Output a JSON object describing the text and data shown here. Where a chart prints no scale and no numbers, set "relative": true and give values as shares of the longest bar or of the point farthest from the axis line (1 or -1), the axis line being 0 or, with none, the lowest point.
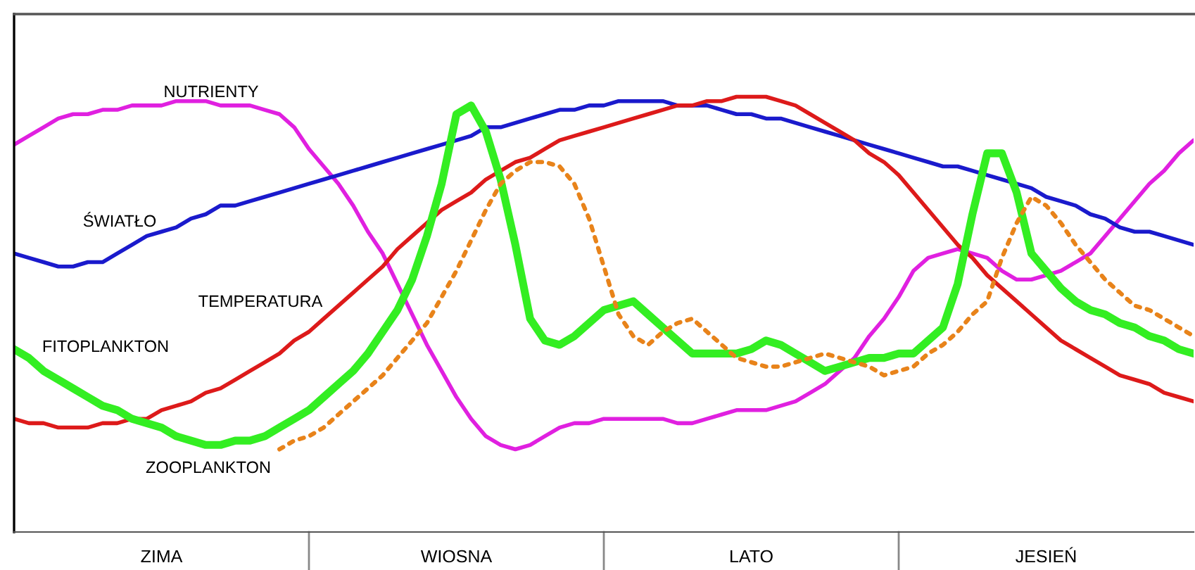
{
  "chart_data": {
    "type": "line",
    "relative": true,
    "tick_labels": "x",
    "grid": false,
    "legend": false,
    "marker": "none",
    "categories": [
      null,
      null,
      null,
      null,
      null,
      null,
      null,
      null,
      null,
      null,
      "ZIMA",
      null,
      null,
      null,
      null,
      null,
      null,
      null,
      null,
      null,
      null,
      null,
      null,
      null,
      null,
      null,
      null,
      null,
      null,
      null,
      "WIOSNA",
      null,
      null,
      null,
      null,
      null,
      null,
      null,
      null,
      null,
      null,
      null,
      null,
      null,
      null,
      null,
      null,
      null,
      null,
      null,
      "LATO",
      null,
      null,
      null,
      null,
      null,
      null,
      null,
      null,
      null,
      null,
      null,
      null,
      null,
      null,
      null,
      null,
      null,
      null,
      null,
      "JESIEŃ",
      null,
      null,
      null,
      null,
      null,
      null,
      null,
      null,
      null,
      null
    ],
    "series": [
      {
        "name": "NUTRIENTY",
        "color": "#e020e0",
        "line_style": "solid",
        "values": [
          0.89,
          0.91,
          0.93,
          0.95,
          0.96,
          0.96,
          0.97,
          0.97,
          0.98,
          0.98,
          0.98,
          0.99,
          0.99,
          0.99,
          0.98,
          0.98,
          0.98,
          0.97,
          0.96,
          0.93,
          0.88,
          0.84,
          0.8,
          0.75,
          0.69,
          0.64,
          0.57,
          0.5,
          0.43,
          0.37,
          0.31,
          0.26,
          0.22,
          0.2,
          0.19,
          0.2,
          0.22,
          0.24,
          0.25,
          0.25,
          0.26,
          0.26,
          0.26,
          0.26,
          0.26,
          0.25,
          0.25,
          0.26,
          0.27,
          0.28,
          0.28,
          0.28,
          0.29,
          0.3,
          0.32,
          0.34,
          0.37,
          0.4,
          0.45,
          0.49,
          0.54,
          0.6,
          0.63,
          0.64,
          0.65,
          0.64,
          0.63,
          0.6,
          0.58,
          0.58,
          0.59,
          0.6,
          0.62,
          0.64,
          0.68,
          0.72,
          0.76,
          0.8,
          0.83,
          0.87,
          0.9
        ]
      },
      {
        "name": "ŚWIATŁO",
        "color": "#1a1acc",
        "line_style": "solid",
        "values": [
          0.64,
          0.63,
          0.62,
          0.61,
          0.61,
          0.62,
          0.62,
          0.64,
          0.66,
          0.68,
          0.69,
          0.7,
          0.72,
          0.73,
          0.75,
          0.75,
          0.76,
          0.77,
          0.78,
          0.79,
          0.8,
          0.81,
          0.82,
          0.83,
          0.84,
          0.85,
          0.86,
          0.87,
          0.88,
          0.89,
          0.9,
          0.91,
          0.93,
          0.93,
          0.94,
          0.95,
          0.96,
          0.97,
          0.97,
          0.98,
          0.98,
          0.99,
          0.99,
          0.99,
          0.99,
          0.98,
          0.98,
          0.98,
          0.97,
          0.96,
          0.96,
          0.95,
          0.95,
          0.94,
          0.93,
          0.92,
          0.91,
          0.9,
          0.89,
          0.88,
          0.87,
          0.86,
          0.85,
          0.84,
          0.84,
          0.83,
          0.82,
          0.81,
          0.8,
          0.79,
          0.77,
          0.76,
          0.75,
          0.73,
          0.72,
          0.7,
          0.69,
          0.69,
          0.68,
          0.67,
          0.66
        ]
      },
      {
        "name": "TEMPERATURA",
        "color": "#dd1a1a",
        "line_style": "solid",
        "values": [
          0.26,
          0.25,
          0.25,
          0.24,
          0.24,
          0.24,
          0.25,
          0.25,
          0.26,
          0.26,
          0.28,
          0.29,
          0.3,
          0.32,
          0.33,
          0.35,
          0.37,
          0.39,
          0.41,
          0.44,
          0.46,
          0.49,
          0.52,
          0.55,
          0.58,
          0.61,
          0.65,
          0.68,
          0.71,
          0.74,
          0.76,
          0.78,
          0.81,
          0.83,
          0.85,
          0.86,
          0.88,
          0.9,
          0.91,
          0.92,
          0.93,
          0.94,
          0.95,
          0.96,
          0.97,
          0.98,
          0.98,
          0.99,
          0.99,
          1.0,
          1.0,
          1.0,
          0.99,
          0.98,
          0.96,
          0.94,
          0.92,
          0.9,
          0.87,
          0.85,
          0.82,
          0.78,
          0.74,
          0.7,
          0.66,
          0.63,
          0.59,
          0.56,
          0.53,
          0.5,
          0.47,
          0.44,
          0.42,
          0.4,
          0.38,
          0.36,
          0.35,
          0.34,
          0.32,
          0.31,
          0.3
        ]
      },
      {
        "name": "FITOPLANKTON",
        "color": "#33ee22",
        "line_style": "solid",
        "values": [
          0.42,
          0.4,
          0.37,
          0.35,
          0.33,
          0.31,
          0.29,
          0.28,
          0.26,
          0.25,
          0.24,
          0.22,
          0.21,
          0.2,
          0.2,
          0.21,
          0.21,
          0.22,
          0.24,
          0.26,
          0.28,
          0.31,
          0.34,
          0.37,
          0.41,
          0.46,
          0.51,
          0.58,
          0.68,
          0.8,
          0.96,
          0.98,
          0.92,
          0.81,
          0.66,
          0.49,
          0.44,
          0.43,
          0.45,
          0.48,
          0.51,
          0.52,
          0.53,
          0.5,
          0.47,
          0.44,
          0.41,
          0.41,
          0.41,
          0.41,
          0.42,
          0.44,
          0.43,
          0.41,
          0.39,
          0.37,
          0.38,
          0.39,
          0.4,
          0.4,
          0.41,
          0.41,
          0.44,
          0.47,
          0.57,
          0.73,
          0.87,
          0.87,
          0.78,
          0.64,
          0.6,
          0.56,
          0.53,
          0.51,
          0.5,
          0.48,
          0.47,
          0.45,
          0.44,
          0.42,
          0.41
        ]
      },
      {
        "name": "ZOOPLANKTON",
        "color": "#e8831a",
        "line_style": "dotted",
        "values": [
          null,
          null,
          null,
          null,
          null,
          null,
          null,
          null,
          null,
          null,
          null,
          null,
          null,
          null,
          null,
          null,
          null,
          null,
          0.19,
          0.21,
          0.22,
          0.24,
          0.27,
          0.3,
          0.33,
          0.36,
          0.4,
          0.44,
          0.48,
          0.54,
          0.6,
          0.67,
          0.74,
          0.8,
          0.83,
          0.85,
          0.85,
          0.84,
          0.8,
          0.72,
          0.61,
          0.5,
          0.45,
          0.43,
          0.46,
          0.48,
          0.49,
          0.46,
          0.43,
          0.4,
          0.39,
          0.38,
          0.38,
          0.39,
          0.4,
          0.41,
          0.4,
          0.39,
          0.38,
          0.36,
          0.37,
          0.38,
          0.41,
          0.43,
          0.46,
          0.5,
          0.53,
          0.63,
          0.71,
          0.77,
          0.75,
          0.71,
          0.66,
          0.62,
          0.58,
          0.55,
          0.52,
          0.51,
          0.49,
          0.47,
          0.45
        ]
      }
    ]
  }
}
